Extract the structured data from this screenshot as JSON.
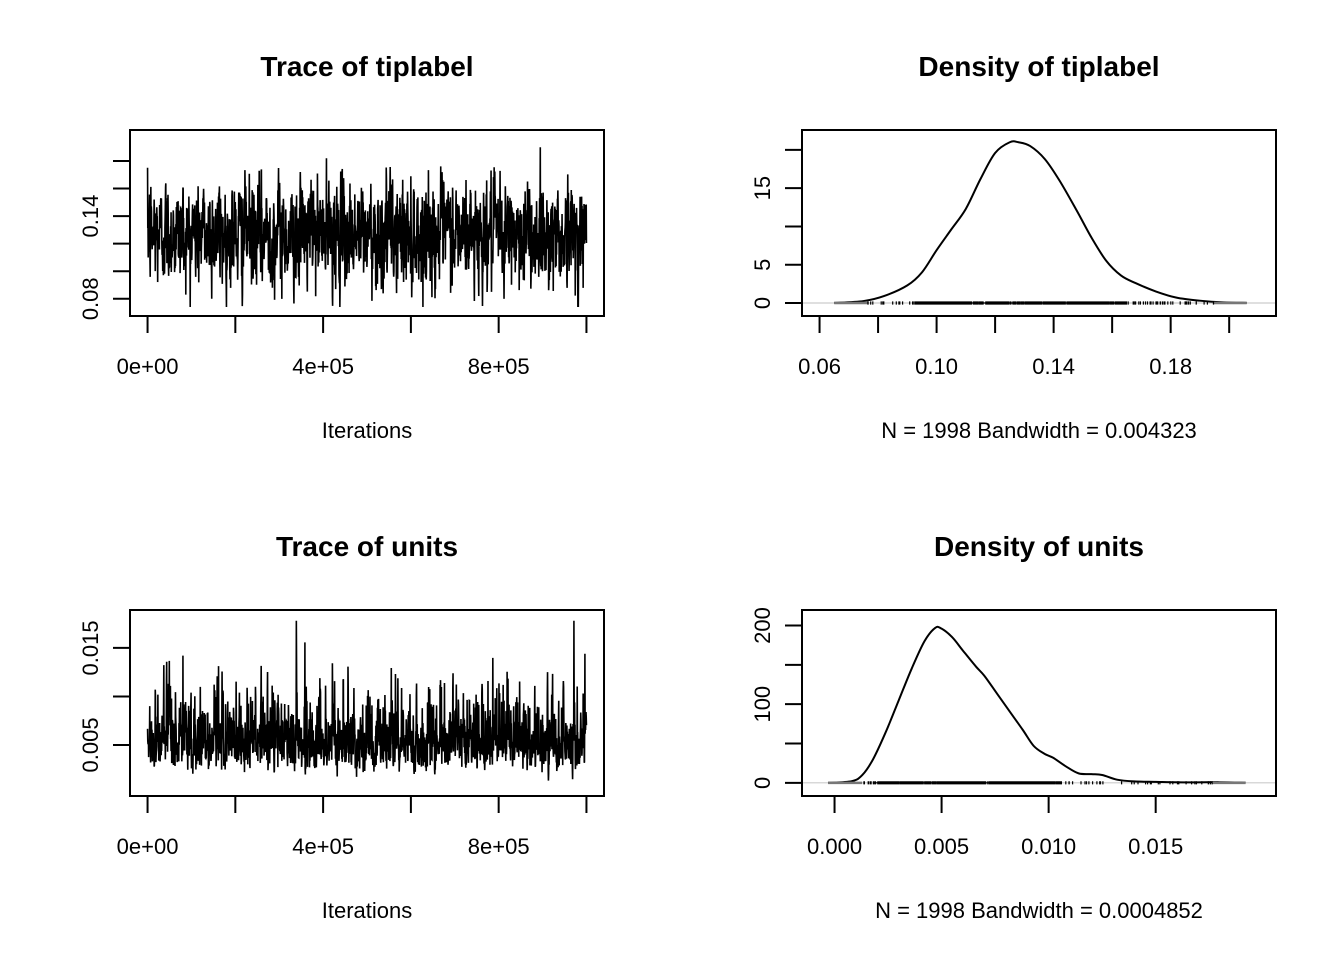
{
  "chart_data": [
    {
      "type": "line",
      "panel": "trace",
      "title": "Trace of tiplabel",
      "xlabel": "Iterations",
      "ylabel": "",
      "xlim": [
        0,
        1000000
      ],
      "x_ticks": [
        0,
        200000,
        400000,
        600000,
        800000,
        1000000
      ],
      "x_tick_labels": [
        "0e+00",
        "",
        "4e+05",
        "",
        "8e+05",
        ""
      ],
      "y_ticks": [
        0.08,
        0.1,
        0.12,
        0.14,
        0.16,
        0.18
      ],
      "y_tick_labels": [
        "0.08",
        "",
        "",
        "0.14",
        "",
        ""
      ],
      "ylim": [
        0.0725,
        0.1975
      ],
      "series": [
        {
          "name": "tiplabel",
          "n": 1998,
          "mean": 0.127,
          "sd": 0.0185,
          "min": 0.074,
          "max": 0.19
        }
      ]
    },
    {
      "type": "line",
      "panel": "density",
      "title": "Density of tiplabel",
      "xlabel": "N = 1998   Bandwidth = 0.004323",
      "ylabel": "",
      "xlim": [
        0.06,
        0.21
      ],
      "x_ticks": [
        0.06,
        0.08,
        0.1,
        0.12,
        0.14,
        0.16,
        0.18,
        0.2
      ],
      "x_tick_labels": [
        "0.06",
        "",
        "0.10",
        "",
        "0.14",
        "",
        "0.18",
        ""
      ],
      "y_ticks": [
        0,
        5,
        10,
        15,
        20
      ],
      "y_tick_labels": [
        "0",
        "5",
        "",
        "15",
        ""
      ],
      "ylim": [
        -0.8,
        21.7
      ],
      "series": [
        {
          "name": "density",
          "x": [
            0.065,
            0.075,
            0.082,
            0.09,
            0.095,
            0.1,
            0.105,
            0.11,
            0.115,
            0.12,
            0.125,
            0.128,
            0.132,
            0.137,
            0.142,
            0.148,
            0.153,
            0.158,
            0.163,
            0.168,
            0.175,
            0.182,
            0.19,
            0.198,
            0.206
          ],
          "y": [
            0.02,
            0.25,
            0.9,
            2.3,
            4.0,
            6.9,
            9.6,
            12.3,
            16.2,
            19.6,
            21.0,
            21.0,
            20.5,
            18.8,
            16.0,
            12.0,
            8.5,
            5.5,
            3.6,
            2.6,
            1.5,
            0.7,
            0.3,
            0.08,
            0.02
          ]
        }
      ],
      "rug": {
        "from": 0.0765,
        "to": 0.195,
        "dense_from": 0.093,
        "dense_to": 0.165
      }
    },
    {
      "type": "line",
      "panel": "trace",
      "title": "Trace of units",
      "xlabel": "Iterations",
      "ylabel": "",
      "xlim": [
        0,
        1000000
      ],
      "x_ticks": [
        0,
        200000,
        400000,
        600000,
        800000,
        1000000
      ],
      "x_tick_labels": [
        "0e+00",
        "",
        "4e+05",
        "",
        "8e+05",
        ""
      ],
      "y_ticks": [
        0.005,
        0.01,
        0.015
      ],
      "y_tick_labels": [
        "0.005",
        "",
        "0.015"
      ],
      "ylim": [
        0.00045,
        0.0182
      ],
      "series": [
        {
          "name": "units",
          "n": 1998,
          "mean": 0.0058,
          "sd": 0.0021,
          "min": 0.0012,
          "max": 0.0178
        }
      ]
    },
    {
      "type": "line",
      "panel": "density",
      "title": "Density of units",
      "xlabel": "N = 1998   Bandwidth = 0.0004852",
      "ylabel": "",
      "xlim": [
        -0.0007,
        0.0198
      ],
      "x_ticks": [
        0.0,
        0.005,
        0.01,
        0.015
      ],
      "x_tick_labels": [
        "0.000",
        "0.005",
        "0.010",
        "0.015"
      ],
      "y_ticks": [
        0,
        50,
        100,
        150,
        200
      ],
      "y_tick_labels": [
        "0",
        "",
        "100",
        "",
        "200"
      ],
      "ylim": [
        -8,
        211
      ],
      "series": [
        {
          "name": "density",
          "x": [
            -0.0003,
            0.0008,
            0.0013,
            0.0018,
            0.0024,
            0.003,
            0.0036,
            0.0042,
            0.0047,
            0.005,
            0.0055,
            0.006,
            0.0066,
            0.007,
            0.0076,
            0.0082,
            0.0088,
            0.0093,
            0.0098,
            0.0102,
            0.0108,
            0.0114,
            0.012,
            0.0125,
            0.0132,
            0.014,
            0.015,
            0.0165,
            0.018,
            0.0192
          ],
          "y": [
            0.1,
            2,
            10,
            30,
            65,
            105,
            145,
            180,
            197,
            196,
            185,
            168,
            148,
            136,
            113,
            90,
            67,
            47,
            37,
            32,
            21,
            12,
            11,
            10,
            4,
            1.8,
            1.2,
            0.6,
            0.8,
            0.2
          ]
        }
      ],
      "rug": {
        "from": 0.0012,
        "to": 0.0177,
        "dense_from": 0.0018,
        "dense_to": 0.0106
      }
    }
  ]
}
